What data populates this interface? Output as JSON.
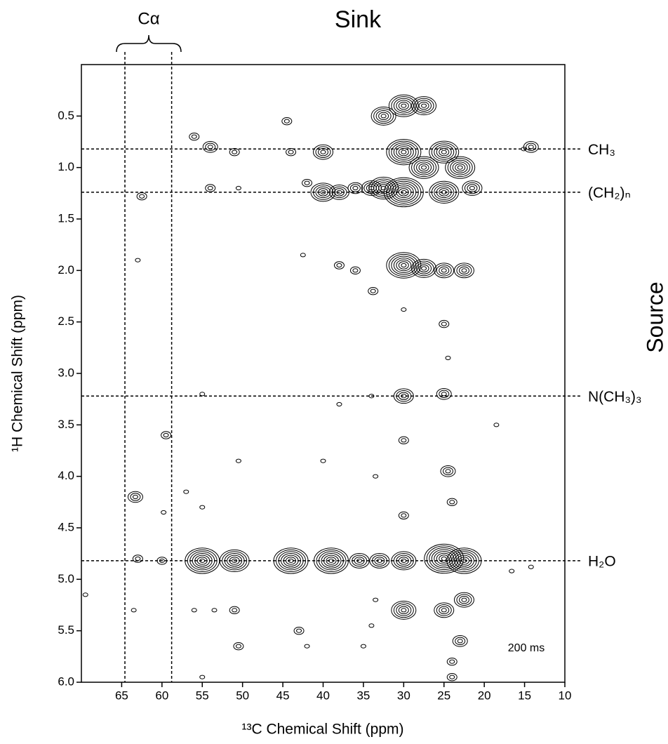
{
  "chart_data": {
    "type": "contour",
    "title": "Sink",
    "side_label": "Source",
    "xlabel": "¹³C Chemical Shift (ppm)",
    "ylabel": "¹H Chemical Shift (ppm)",
    "annotation": "200 ms",
    "bracket_label": "Cα",
    "xlim": [
      70,
      10
    ],
    "ylim": [
      0,
      6
    ],
    "xticks": [
      65,
      60,
      55,
      50,
      45,
      40,
      35,
      30,
      25,
      20,
      15,
      10
    ],
    "yticks": [
      0.5,
      {
        "value": 1,
        "label": "1.0"
      },
      1.5,
      {
        "value": 2,
        "label": "2.0"
      },
      2.5,
      {
        "value": 3,
        "label": "3.0"
      },
      3.5,
      {
        "value": 4,
        "label": "4.0"
      },
      4.5,
      {
        "value": 5,
        "label": "5.0"
      },
      5.5,
      {
        "value": 6,
        "label": "6.0"
      }
    ],
    "color": "#000000",
    "vlines": [
      64.6,
      58.8
    ],
    "hlines": [
      {
        "value": 0.82,
        "label": "CH₃"
      },
      {
        "value": 1.24,
        "label": "(CH₂)ₙ"
      },
      {
        "value": 3.22,
        "label": "N(CH₃)₃"
      },
      {
        "value": 4.82,
        "label": "H₂O"
      }
    ],
    "peaks": {
      "x": [
        14.2,
        15.1,
        30,
        30,
        30,
        32.5,
        32.5,
        27.5,
        27.5,
        25,
        25,
        23,
        21.5,
        34,
        36,
        38,
        40,
        40,
        42,
        44.5,
        44,
        51,
        54,
        56,
        54,
        50.5,
        62.5,
        63,
        30,
        27.5,
        25,
        22.5,
        38,
        36,
        33.8,
        42.5,
        25,
        24.5,
        30,
        30,
        25,
        34,
        38,
        55,
        18.5,
        30,
        24.5,
        24,
        30,
        33.5,
        40,
        50.5,
        59.5,
        59.8,
        63.3,
        55,
        57,
        55,
        51,
        44,
        39,
        35.5,
        33,
        30,
        25,
        22.5,
        63,
        60,
        14.2,
        16.6,
        30,
        25,
        22.5,
        23,
        24,
        51,
        43,
        42,
        34,
        35,
        56,
        53.5,
        50.5,
        63.5,
        69.5,
        55,
        24,
        33.5
      ],
      "y": [
        0.8,
        0.82,
        0.85,
        1.24,
        0.4,
        1.2,
        0.5,
        1.0,
        0.4,
        0.85,
        1.24,
        1.0,
        1.2,
        1.2,
        1.2,
        1.24,
        0.85,
        1.24,
        1.15,
        0.55,
        0.85,
        0.85,
        0.8,
        0.7,
        1.2,
        1.2,
        1.28,
        1.9,
        1.95,
        1.98,
        2.0,
        2.0,
        1.95,
        2.0,
        2.2,
        1.85,
        2.52,
        2.85,
        2.38,
        3.22,
        3.2,
        3.22,
        3.3,
        3.2,
        3.5,
        3.65,
        3.95,
        4.25,
        4.38,
        4.0,
        3.85,
        3.85,
        3.6,
        4.35,
        4.2,
        4.3,
        4.15,
        4.82,
        4.82,
        4.82,
        4.82,
        4.82,
        4.82,
        4.82,
        4.8,
        4.82,
        4.8,
        4.82,
        4.88,
        4.92,
        5.3,
        5.3,
        5.2,
        5.6,
        5.8,
        5.3,
        5.5,
        5.65,
        5.45,
        5.65,
        5.3,
        5.3,
        5.65,
        5.3,
        5.15,
        5.95,
        5.95,
        5.2
      ],
      "levels": [
        3,
        1,
        7,
        8,
        6,
        6,
        5,
        6,
        5,
        6,
        6,
        6,
        4,
        4,
        3,
        4,
        4,
        5,
        2,
        2,
        2,
        2,
        3,
        2,
        2,
        1,
        2,
        1,
        7,
        5,
        4,
        4,
        2,
        2,
        2,
        1,
        2,
        1,
        1,
        4,
        3,
        1,
        1,
        1,
        1,
        2,
        3,
        2,
        2,
        1,
        1,
        1,
        2,
        1,
        3,
        1,
        1,
        7,
        6,
        7,
        7,
        4,
        4,
        5,
        8,
        7,
        2,
        2,
        1,
        1,
        5,
        4,
        4,
        3,
        2,
        2,
        2,
        1,
        1,
        1,
        1,
        1,
        2,
        1,
        1,
        1,
        2,
        1
      ]
    }
  }
}
